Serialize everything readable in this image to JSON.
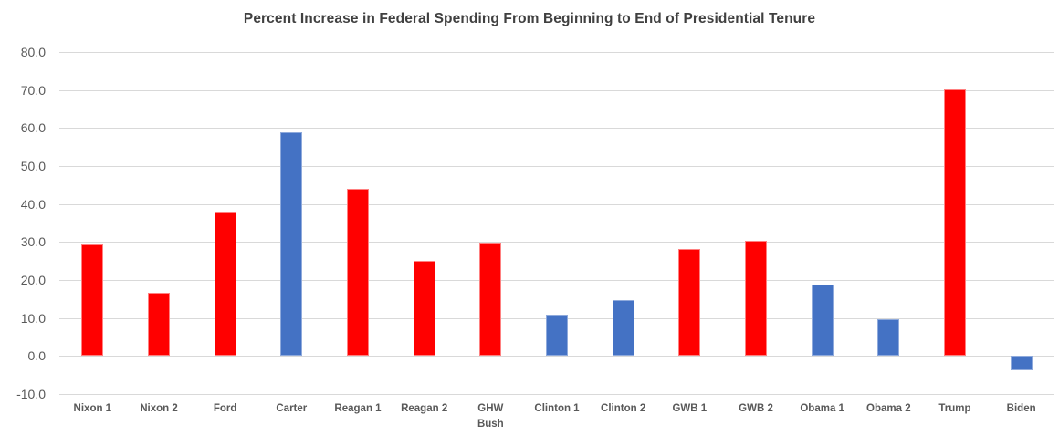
{
  "chart_data": {
    "type": "bar",
    "title": "Percent Increase in Federal Spending From Beginning to End of Presidential Tenure",
    "categories": [
      "Nixon 1",
      "Nixon 2",
      "Ford",
      "Carter",
      "Reagan 1",
      "Reagan 2",
      "GHW\nBush",
      "Clinton 1",
      "Clinton 2",
      "GWB 1",
      "GWB 2",
      "Obama 1",
      "Obama 2",
      "Trump",
      "Biden"
    ],
    "values": [
      29.4,
      16.7,
      38.0,
      59.0,
      44.1,
      25.0,
      29.9,
      10.8,
      14.8,
      28.2,
      30.4,
      18.8,
      9.7,
      70.1,
      -3.8
    ],
    "bar_party": [
      "red",
      "red",
      "red",
      "blue",
      "red",
      "red",
      "red",
      "blue",
      "blue",
      "red",
      "red",
      "blue",
      "blue",
      "red",
      "blue"
    ],
    "xlabel": "",
    "ylabel": "",
    "ylim": [
      -10,
      80
    ],
    "ytick_step": 10,
    "ytick_labels": [
      "80.0",
      "70.0",
      "60.0",
      "50.0",
      "40.0",
      "30.0",
      "20.0",
      "10.0",
      "0.0",
      "-10.0"
    ],
    "grid": true,
    "legend": false,
    "colors": {
      "red_bar": "#FF0000",
      "red_bar_border": "#FF8080",
      "blue_bar": "#4472C4",
      "blue_bar_border": "#8FAADC",
      "gridline": "#D9D9D9",
      "title_text": "#404040",
      "tick_text": "#595959"
    }
  }
}
